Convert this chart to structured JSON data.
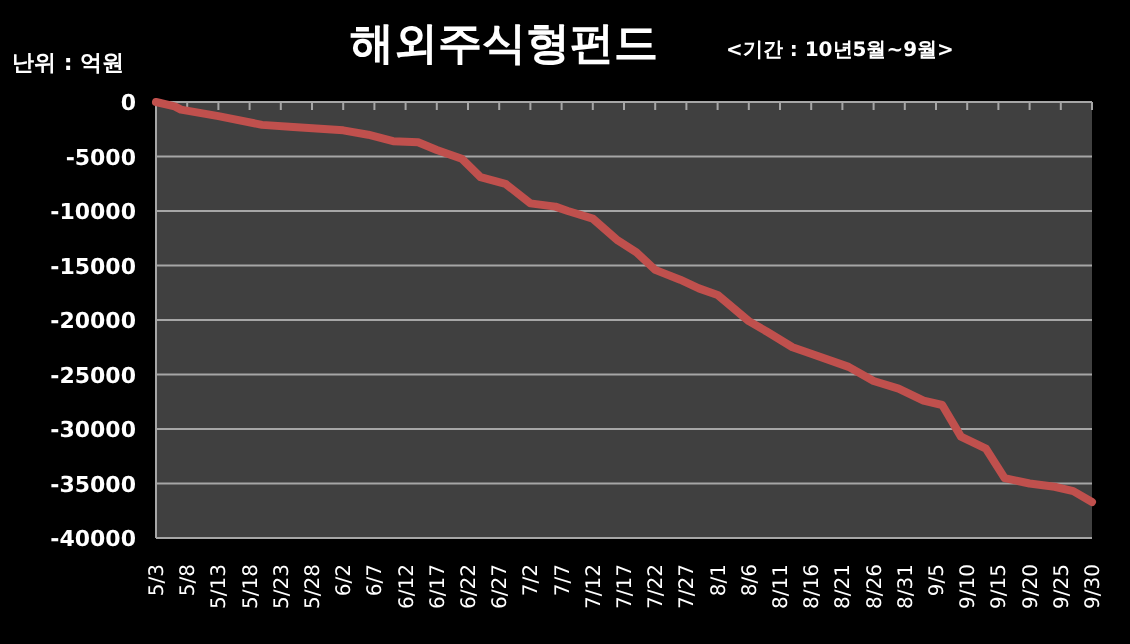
{
  "chart_data": {
    "type": "line",
    "title": "해외주식형펀드",
    "subtitle": "<기간 : 10년5월~9월>",
    "annotations": [
      "난위 : 억원"
    ],
    "x": [
      "--05-03",
      "--05-06",
      "--05-07",
      "--05-13",
      "--05-20",
      "--05-25",
      "--06-02",
      "--06-06",
      "--06-10",
      "--06-14",
      "--06-17",
      "--06-21",
      "--06-24",
      "--06-28",
      "--07-02",
      "--07-06",
      "--07-08",
      "--07-12",
      "--07-16",
      "--07-19",
      "--07-22",
      "--07-26",
      "--07-29",
      "--08-01",
      "--08-06",
      "--08-09",
      "--08-13",
      "--08-16",
      "--08-22",
      "--08-26",
      "--08-30",
      "--09-03",
      "--09-06",
      "--09-09",
      "--09-13",
      "--09-16",
      "--09-20",
      "--09-24",
      "--09-27",
      "--09-30"
    ],
    "series": [
      {
        "color": "#c0504d",
        "values": [
          0,
          -400,
          -700,
          -1300,
          -2100,
          -2300,
          -2600,
          -3000,
          -3600,
          -3700,
          -4400,
          -5200,
          -6900,
          -7500,
          -9300,
          -9600,
          -10000,
          -10700,
          -12700,
          -13800,
          -15400,
          -16300,
          -17100,
          -17700,
          -20100,
          -21100,
          -22500,
          -23100,
          -24300,
          -25600,
          -26300,
          -27400,
          -27800,
          -30700,
          -31800,
          -34500,
          -35000,
          -35300,
          -35700,
          -36700
        ]
      }
    ],
    "xlim": [
      "--05-03",
      "--09-30"
    ],
    "xticks": [
      {
        "value": "--05-03",
        "label": "5/3"
      },
      {
        "value": "--05-08",
        "label": "5/8"
      },
      {
        "value": "--05-13",
        "label": "5/13"
      },
      {
        "value": "--05-18",
        "label": "5/18"
      },
      {
        "value": "--05-23",
        "label": "5/23"
      },
      {
        "value": "--05-28",
        "label": "5/28"
      },
      {
        "value": "--06-02",
        "label": "6/2"
      },
      {
        "value": "--06-07",
        "label": "6/7"
      },
      {
        "value": "--06-12",
        "label": "6/12"
      },
      {
        "value": "--06-17",
        "label": "6/17"
      },
      {
        "value": "--06-22",
        "label": "6/22"
      },
      {
        "value": "--06-27",
        "label": "6/27"
      },
      {
        "value": "--07-02",
        "label": "7/2"
      },
      {
        "value": "--07-07",
        "label": "7/7"
      },
      {
        "value": "--07-12",
        "label": "7/12"
      },
      {
        "value": "--07-17",
        "label": "7/17"
      },
      {
        "value": "--07-22",
        "label": "7/22"
      },
      {
        "value": "--07-27",
        "label": "7/27"
      },
      {
        "value": "--08-01",
        "label": "8/1"
      },
      {
        "value": "--08-06",
        "label": "8/6"
      },
      {
        "value": "--08-11",
        "label": "8/11"
      },
      {
        "value": "--08-16",
        "label": "8/16"
      },
      {
        "value": "--08-21",
        "label": "8/21"
      },
      {
        "value": "--08-26",
        "label": "8/26"
      },
      {
        "value": "--08-31",
        "label": "8/31"
      },
      {
        "value": "--09-05",
        "label": "9/5"
      },
      {
        "value": "--09-10",
        "label": "9/10"
      },
      {
        "value": "--09-15",
        "label": "9/15"
      },
      {
        "value": "--09-20",
        "label": "9/20"
      },
      {
        "value": "--09-25",
        "label": "9/25"
      },
      {
        "value": "--09-30",
        "label": "9/30"
      }
    ],
    "ylim": [
      -40000,
      0
    ],
    "yticks": [
      -40000,
      -35000,
      -30000,
      -25000,
      -20000,
      -15000,
      -10000,
      -5000,
      0
    ],
    "grid": "y",
    "marker": "none",
    "line_style": "solid"
  }
}
